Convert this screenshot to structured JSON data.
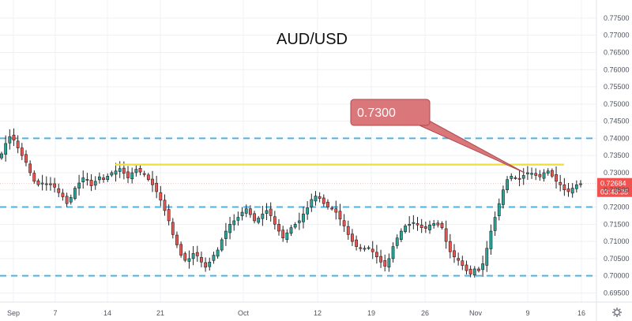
{
  "chart_data": {
    "type": "candlestick",
    "title": "AUD/USD",
    "y_axis": {
      "ticks": [
        "0.77500",
        "0.77000",
        "0.76500",
        "0.76000",
        "0.75500",
        "0.75000",
        "0.74500",
        "0.74000",
        "0.73500",
        "0.73000",
        "0.72500",
        "0.72000",
        "0.71500",
        "0.71000",
        "0.70500",
        "0.70000",
        "0.69500"
      ],
      "range": [
        0.6935,
        0.7775
      ]
    },
    "x_axis": {
      "ticks": [
        "Sep",
        "7",
        "14",
        "21",
        "Oct",
        "12",
        "19",
        "26",
        "Nov",
        "9",
        "16"
      ]
    },
    "horizontal_levels": [
      {
        "value": 0.74,
        "style": "dashed",
        "color": "#4fb3e0"
      },
      {
        "value": 0.72,
        "style": "dashed",
        "color": "#4fb3e0"
      },
      {
        "value": 0.7,
        "style": "dashed",
        "color": "#4fb3e0"
      }
    ],
    "resistance_line": {
      "value": 0.7325,
      "color": "#f2e03a"
    },
    "callout": {
      "label": "0.7300",
      "color": "#d9777a"
    },
    "last_price": {
      "value": "0.72684",
      "countdown": "03:46:35",
      "color": "#ef5350"
    },
    "candle_colors": {
      "up": "#26a69a",
      "down": "#ef5350"
    },
    "series": [
      {
        "name": "close",
        "values": [
          0.7355,
          0.7385,
          0.7405,
          0.7395,
          0.7372,
          0.735,
          0.733,
          0.73,
          0.7275,
          0.7265,
          0.727,
          0.7268,
          0.7265,
          0.7258,
          0.7242,
          0.723,
          0.721,
          0.7228,
          0.7255,
          0.727,
          0.7285,
          0.728,
          0.7262,
          0.7275,
          0.7288,
          0.728,
          0.729,
          0.73,
          0.7305,
          0.7312,
          0.7298,
          0.7285,
          0.73,
          0.731,
          0.7302,
          0.7295,
          0.728,
          0.7265,
          0.7245,
          0.722,
          0.719,
          0.716,
          0.712,
          0.709,
          0.706,
          0.7045,
          0.705,
          0.7065,
          0.7058,
          0.704,
          0.7025,
          0.704,
          0.706,
          0.7075,
          0.7105,
          0.713,
          0.715,
          0.716,
          0.717,
          0.7185,
          0.7195,
          0.7178,
          0.716,
          0.7168,
          0.718,
          0.719,
          0.7175,
          0.715,
          0.713,
          0.711,
          0.7125,
          0.714,
          0.715,
          0.716,
          0.718,
          0.7198,
          0.7222,
          0.7232,
          0.7225,
          0.721,
          0.72,
          0.7195,
          0.7185,
          0.7165,
          0.7145,
          0.712,
          0.71,
          0.7085,
          0.708,
          0.7078,
          0.7082,
          0.707,
          0.7055,
          0.704,
          0.7028,
          0.705,
          0.7085,
          0.711,
          0.713,
          0.7145,
          0.715,
          0.7155,
          0.7148,
          0.714,
          0.7138,
          0.7148,
          0.7152,
          0.7148,
          0.714,
          0.71,
          0.707,
          0.7055,
          0.7045,
          0.703,
          0.7015,
          0.7005,
          0.702,
          0.7015,
          0.7035,
          0.708,
          0.713,
          0.717,
          0.721,
          0.725,
          0.728,
          0.729,
          0.7285,
          0.7282,
          0.7292,
          0.73,
          0.7298,
          0.7292,
          0.7288,
          0.73,
          0.7305,
          0.729,
          0.7275,
          0.7265,
          0.725,
          0.7245,
          0.7255,
          0.7265,
          0.7268
        ]
      }
    ]
  }
}
